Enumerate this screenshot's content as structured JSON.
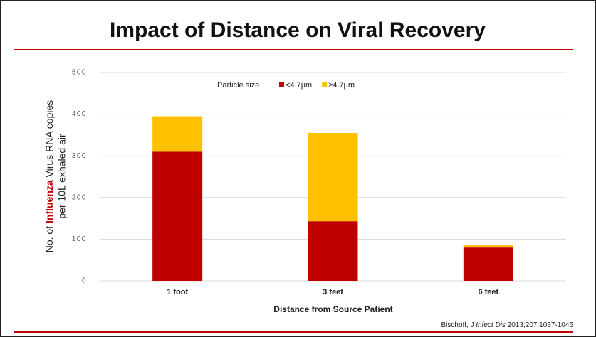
{
  "chart_data": {
    "type": "stacked_bar",
    "title": "Impact of Distance on Viral Recovery",
    "y_label": {
      "line1": [
        "No. of ",
        "Influenza",
        " Virus RNA copies"
      ],
      "line2": "per 10L exhaled air"
    },
    "x_label": "Distance from Source Patient",
    "legend_title": "Particle size",
    "categories": [
      "1 foot",
      "3 feet",
      "6 feet"
    ],
    "series": [
      {
        "name": "<4.7μm",
        "color": "#c00000",
        "values": [
          310,
          143,
          80
        ]
      },
      {
        "name": "≥4.7μm",
        "color": "#ffc000",
        "values": [
          85,
          212,
          7
        ]
      }
    ],
    "ylim": [
      0,
      500
    ],
    "yticks": [
      0,
      100,
      200,
      300,
      400,
      500
    ],
    "grid": true,
    "source": [
      "Bischoff, ",
      "J Infect Dis",
      " 2013;207:1037-1046"
    ]
  }
}
